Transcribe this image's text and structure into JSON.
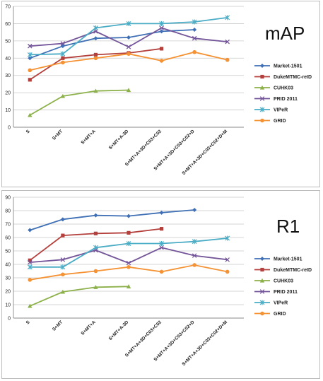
{
  "chart_data": [
    {
      "type": "line",
      "title": "mAP",
      "categories": [
        "S",
        "S+MT",
        "S+MT+A",
        "S+MT+A-3D",
        "S+MT+A+3D+C03+C02",
        "S+MT+A+3D+C03+C02+D",
        "S+MT+A+3D+C03+C02+D+M"
      ],
      "ylim": [
        0,
        70
      ],
      "yticks": [
        0,
        10,
        20,
        30,
        40,
        50,
        60,
        70
      ],
      "grid": true,
      "legend": "right",
      "series": [
        {
          "name": "Market-1501",
          "color": "#3f6fb4",
          "marker": "diamond",
          "values": [
            40,
            47,
            51.5,
            52,
            55.5,
            56.5,
            null
          ]
        },
        {
          "name": "DukeMTMC-reID",
          "color": "#b3403c",
          "marker": "square",
          "values": [
            27.5,
            40,
            42,
            43,
            45.5,
            null,
            null
          ]
        },
        {
          "name": "CUHK03",
          "color": "#8db14a",
          "marker": "triangle",
          "values": [
            7,
            18,
            21,
            21.5,
            null,
            null,
            null
          ]
        },
        {
          "name": "PRID 2011",
          "color": "#74559a",
          "marker": "x",
          "values": [
            47,
            48.5,
            55.5,
            46.5,
            57.5,
            51.5,
            49.5
          ]
        },
        {
          "name": "VIPeR",
          "color": "#4aacc5",
          "marker": "star",
          "values": [
            42,
            42.5,
            57.5,
            60,
            60,
            61,
            63.5
          ]
        },
        {
          "name": "GRID",
          "color": "#f59233",
          "marker": "circle",
          "values": [
            33,
            37.5,
            40,
            42.5,
            38.5,
            43.5,
            39
          ]
        }
      ]
    },
    {
      "type": "line",
      "title": "R1",
      "categories": [
        "S",
        "S+MT",
        "S+MT+A",
        "S+MT+A-3D",
        "S+MT+A+3D+C03+C02",
        "S+MT+A+3D+C03+C02+D",
        "S+MT+A+3D+C03+C02+D+M"
      ],
      "ylim": [
        0,
        90
      ],
      "yticks": [
        0,
        10,
        20,
        30,
        40,
        50,
        60,
        70,
        80,
        90
      ],
      "grid": true,
      "legend": "right",
      "series": [
        {
          "name": "Market-1501",
          "color": "#3f6fb4",
          "marker": "diamond",
          "values": [
            65.5,
            73.5,
            76.5,
            76,
            78.5,
            80.5,
            null
          ]
        },
        {
          "name": "DukeMTMC-reID",
          "color": "#b3403c",
          "marker": "square",
          "values": [
            43,
            61.5,
            63,
            63.5,
            66.5,
            null,
            null
          ]
        },
        {
          "name": "CUHK03",
          "color": "#8db14a",
          "marker": "triangle",
          "values": [
            9,
            19.5,
            23,
            23.5,
            null,
            null,
            null
          ]
        },
        {
          "name": "PRID 2011",
          "color": "#74559a",
          "marker": "x",
          "values": [
            41.5,
            43.5,
            50.5,
            41,
            52.5,
            46.5,
            43.5
          ]
        },
        {
          "name": "VIPeR",
          "color": "#4aacc5",
          "marker": "star",
          "values": [
            38,
            38,
            52.5,
            55.5,
            55.5,
            57,
            59.5
          ]
        },
        {
          "name": "GRID",
          "color": "#f59233",
          "marker": "circle",
          "values": [
            28.5,
            32.5,
            35,
            38,
            34.5,
            39.5,
            34.5
          ]
        }
      ]
    }
  ]
}
